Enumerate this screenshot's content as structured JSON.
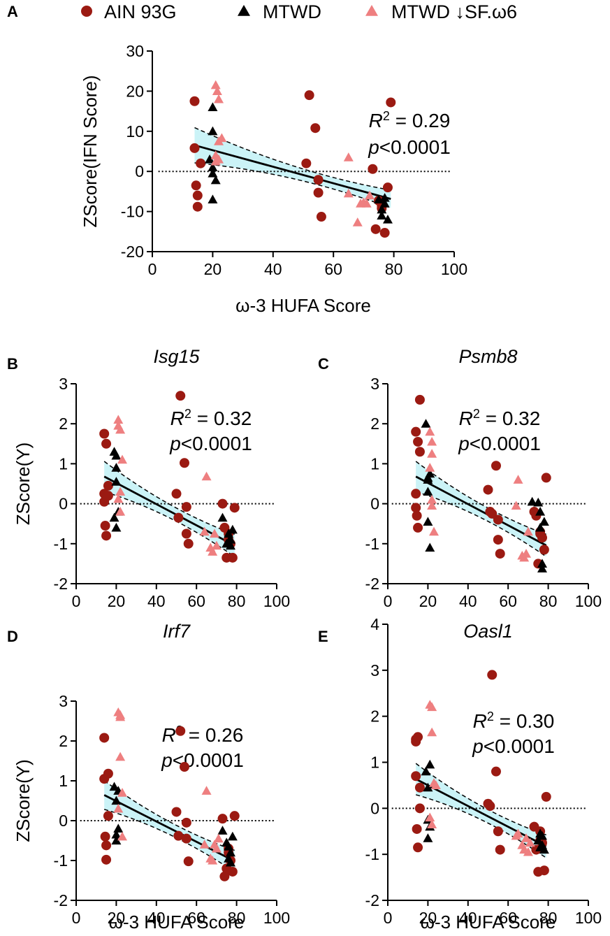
{
  "colors": {
    "ain": "#9b1a12",
    "mtwd": "#000000",
    "mtwd_low": "#ee7f80",
    "band": "#cbf3f7",
    "line": "#000000"
  },
  "legend": [
    {
      "key": "ain",
      "shape": "circle",
      "label": "AIN 93G"
    },
    {
      "key": "mtwd",
      "shape": "triangle",
      "label": "MTWD"
    },
    {
      "key": "mtwd_low",
      "shape": "triangle",
      "label": "MTWD ↓SF.ω6"
    }
  ],
  "chart_data": [
    {
      "id": "A",
      "letter": "A",
      "type": "scatter",
      "title": "",
      "xlabel": "ω-3 HUFA Score",
      "ylabel": "ZScore(IFN Score)",
      "xlim": [
        0,
        100
      ],
      "ylim": [
        -20,
        30
      ],
      "xticks": [
        "0",
        "20",
        "40",
        "60",
        "80",
        "100"
      ],
      "yticks": [
        "-20",
        "-10",
        "0",
        "10",
        "20",
        "30"
      ],
      "stat": {
        "r2_label": "R",
        "r2_sup": "2",
        "r2_value": " = 0.29",
        "p_label": "p",
        "p_value": "<0.0001"
      },
      "fit": {
        "slope": -0.206,
        "intercept": 9.4,
        "band_at_min": 4.4,
        "band_at_mid": 1.6,
        "band_at_max": 2.2,
        "x_from": 14,
        "x_to": 79
      },
      "zero_line": {
        "x_from": 2,
        "x_to": 99
      },
      "series": [
        {
          "key": "ain",
          "name": "AIN 93G",
          "x": [
            14,
            14,
            14.5,
            15,
            15,
            16,
            51,
            52,
            54,
            55,
            55,
            56,
            73,
            74,
            75,
            76,
            76,
            77,
            78,
            79
          ],
          "y": [
            17.5,
            5.8,
            -3.5,
            -6,
            -8.8,
            2,
            2,
            19,
            10.8,
            -2.1,
            -5.3,
            -11.3,
            0.6,
            -14.4,
            -7.3,
            -9.2,
            -8.5,
            -15.3,
            -4,
            17.2
          ]
        },
        {
          "key": "mtwd",
          "name": "MTWD",
          "x": [
            19,
            20,
            20,
            20,
            20,
            20,
            21,
            75,
            76,
            76,
            77,
            77,
            78
          ],
          "y": [
            3,
            16,
            10,
            1,
            -0.5,
            -7,
            -2.2,
            -7,
            -9.5,
            -11,
            -8,
            -6.6,
            -12
          ]
        },
        {
          "key": "mtwd_low",
          "name": "MTWD ↓SF.ω6",
          "x": [
            21,
            21.5,
            22,
            22,
            21,
            22,
            21,
            23,
            65,
            65,
            68,
            69,
            70,
            71,
            72
          ],
          "y": [
            21.5,
            20,
            18,
            7.5,
            4,
            3,
            2.5,
            8.3,
            3.5,
            -5.5,
            -12.7,
            -8,
            -7.7,
            -8,
            -6
          ]
        }
      ]
    },
    {
      "id": "B",
      "letter": "B",
      "type": "scatter",
      "title": "Isg15",
      "xlabel": "",
      "ylabel": "ZScore(Y)",
      "xlim": [
        0,
        100
      ],
      "ylim": [
        -2,
        3
      ],
      "xticks": [
        "0",
        "20",
        "40",
        "60",
        "80",
        "100"
      ],
      "yticks": [
        "-2",
        "-1",
        "0",
        "1",
        "2",
        "3"
      ],
      "stat": {
        "r2_label": "R",
        "r2_sup": "2",
        "r2_value": " = 0.32",
        "p_label": "p",
        "p_value": "<0.0001"
      },
      "fit": {
        "slope": -0.0265,
        "intercept": 1.05,
        "band_at_min": 0.38,
        "band_at_mid": 0.17,
        "band_at_max": 0.28,
        "x_from": 14,
        "x_to": 79
      },
      "zero_line": {
        "x_from": 2,
        "x_to": 99
      },
      "series": [
        {
          "key": "ain",
          "name": "AIN 93G",
          "x": [
            14,
            14,
            14,
            14.5,
            15,
            15,
            16,
            16,
            50,
            51,
            52,
            54,
            55,
            55,
            56,
            73,
            74,
            75,
            76,
            76,
            77,
            78,
            79
          ],
          "y": [
            1.75,
            0.25,
            0.05,
            -0.55,
            -0.8,
            1.5,
            0.45,
            0.2,
            0.25,
            -0.35,
            2.7,
            1.02,
            -0.08,
            -0.75,
            -1,
            0,
            -0.6,
            -1.35,
            -0.9,
            -0.75,
            -1,
            -1.35,
            -0.1
          ]
        },
        {
          "key": "mtwd",
          "name": "MTWD",
          "x": [
            19,
            19,
            20,
            20,
            20,
            20,
            21,
            73,
            75,
            76,
            76,
            77,
            77,
            78
          ],
          "y": [
            1.3,
            -0.35,
            1.2,
            0.9,
            0.55,
            -0.6,
            -0.2,
            -0.35,
            -1,
            -0.95,
            -0.75,
            -0.9,
            -1.05,
            -0.65
          ]
        },
        {
          "key": "mtwd_low",
          "name": "MTWD ↓SF.ω6",
          "x": [
            21,
            21,
            22,
            22,
            21,
            22,
            23,
            64,
            65,
            67,
            68,
            69,
            70
          ],
          "y": [
            2.1,
            1.95,
            1.85,
            0.3,
            0.12,
            -0.2,
            1.1,
            -0.7,
            0.68,
            -1.1,
            -1.2,
            -0.75,
            -1.05
          ]
        }
      ]
    },
    {
      "id": "C",
      "letter": "C",
      "type": "scatter",
      "title": "Psmb8",
      "xlabel": "",
      "ylabel": "",
      "xlim": [
        0,
        100
      ],
      "ylim": [
        -2,
        3
      ],
      "xticks": [
        "0",
        "20",
        "40",
        "60",
        "80",
        "100"
      ],
      "yticks": [
        "-2",
        "-1",
        "0",
        "1",
        "2",
        "3"
      ],
      "stat": {
        "r2_label": "R",
        "r2_sup": "2",
        "r2_value": " = 0.32",
        "p_label": "p",
        "p_value": "<0.0001"
      },
      "fit": {
        "slope": -0.0265,
        "intercept": 1.05,
        "band_at_min": 0.38,
        "band_at_mid": 0.17,
        "band_at_max": 0.28,
        "x_from": 14,
        "x_to": 79
      },
      "zero_line": {
        "x_from": 2,
        "x_to": 99
      },
      "series": [
        {
          "key": "ain",
          "name": "AIN 93G",
          "x": [
            14,
            14,
            14,
            14.5,
            15,
            15,
            16,
            16,
            50,
            51,
            52,
            54,
            55,
            55,
            56,
            73,
            74,
            75,
            76,
            76,
            77,
            78,
            79
          ],
          "y": [
            1.8,
            0.25,
            -0.1,
            -0.3,
            -0.6,
            1.55,
            2.6,
            1.3,
            0.35,
            -0.2,
            -0.25,
            0.95,
            -0.4,
            -0.9,
            -1.25,
            -0.2,
            -0.3,
            -1.5,
            -0.75,
            -0.7,
            -0.85,
            -1.15,
            0.65
          ]
        },
        {
          "key": "mtwd",
          "name": "MTWD",
          "x": [
            19,
            20,
            20,
            20,
            20,
            21,
            21,
            72,
            75,
            76,
            76,
            77,
            77,
            78
          ],
          "y": [
            2,
            0.6,
            0.65,
            0.3,
            -0.45,
            -1.1,
            0.75,
            0.05,
            0.03,
            -0.2,
            -0.6,
            -1.5,
            -1.62,
            -0.45
          ]
        },
        {
          "key": "mtwd_low",
          "name": "MTWD ↓SF.ω6",
          "x": [
            21,
            22,
            22,
            21,
            22,
            23,
            22,
            64,
            65,
            67,
            68,
            69,
            70
          ],
          "y": [
            1.8,
            1.55,
            1.25,
            0.9,
            0.1,
            -0.7,
            -0.05,
            -0.05,
            0.6,
            -1.3,
            -1.35,
            -1.25,
            -0.7
          ]
        }
      ]
    },
    {
      "id": "D",
      "letter": "D",
      "type": "scatter",
      "title": "Irf7",
      "xlabel": "ω-3 HUFA Score",
      "ylabel": "ZScore(Y)",
      "xlim": [
        0,
        100
      ],
      "ylim": [
        -2,
        3
      ],
      "xticks": [
        "0",
        "20",
        "40",
        "60",
        "80",
        "100"
      ],
      "yticks": [
        "-2",
        "-1",
        "0",
        "1",
        "2",
        "3"
      ],
      "stat": {
        "r2_label": "R",
        "r2_sup": "2",
        "r2_value": " = 0.26",
        "p_label": "p",
        "p_value": "<0.0001"
      },
      "fit": {
        "slope": -0.0255,
        "intercept": 1.0,
        "band_at_min": 0.36,
        "band_at_mid": 0.16,
        "band_at_max": 0.27,
        "x_from": 14,
        "x_to": 79
      },
      "zero_line": {
        "x_from": 2,
        "x_to": 99
      },
      "series": [
        {
          "key": "ain",
          "name": "AIN 93G",
          "x": [
            14,
            14,
            14.5,
            15,
            15,
            16,
            16,
            50,
            51,
            52,
            54,
            55,
            55,
            56,
            73,
            74,
            75,
            76,
            76,
            77,
            78,
            79
          ],
          "y": [
            2.08,
            1.05,
            -0.4,
            -0.62,
            -0.98,
            0.12,
            1.18,
            0.22,
            -0.38,
            2.25,
            1.35,
            -0.05,
            -0.45,
            -1.02,
            0.05,
            -1.4,
            -1.2,
            -0.8,
            -0.7,
            -1,
            -1.28,
            0.12
          ]
        },
        {
          "key": "mtwd",
          "name": "MTWD",
          "x": [
            19,
            20,
            20,
            20,
            21,
            21,
            73,
            75,
            76,
            76,
            77,
            77,
            78
          ],
          "y": [
            0.85,
            0.5,
            -0.35,
            -0.5,
            -0.2,
            0.75,
            -0.25,
            -0.55,
            -0.65,
            -0.95,
            -1.05,
            -0.8,
            -0.4
          ]
        },
        {
          "key": "mtwd_low",
          "name": "MTWD ↓SF.ω6",
          "x": [
            21,
            22,
            22,
            22,
            21,
            23,
            23,
            64,
            65,
            67,
            68,
            69,
            70,
            71
          ],
          "y": [
            2.72,
            2.65,
            2.6,
            1.6,
            0.3,
            -0.4,
            0.7,
            -0.6,
            0.75,
            -0.95,
            -1,
            -0.6,
            -0.7,
            -0.45
          ]
        }
      ]
    },
    {
      "id": "E",
      "letter": "E",
      "type": "scatter",
      "title": "Oasl1",
      "xlabel": "ω-3 HUFA Score",
      "ylabel": "",
      "xlim": [
        0,
        100
      ],
      "ylim": [
        -2,
        4
      ],
      "xticks": [
        "0",
        "20",
        "40",
        "60",
        "80",
        "100"
      ],
      "yticks": [
        "-2",
        "-1",
        "0",
        "1",
        "2",
        "3",
        "4"
      ],
      "stat": {
        "r2_label": "R",
        "r2_sup": "2",
        "r2_value": " = 0.30",
        "p_label": "p",
        "p_value": "<0.0001"
      },
      "fit": {
        "slope": -0.0225,
        "intercept": 0.95,
        "band_at_min": 0.34,
        "band_at_mid": 0.15,
        "band_at_max": 0.25,
        "x_from": 14,
        "x_to": 79
      },
      "zero_line": {
        "x_from": 2,
        "x_to": 99
      },
      "series": [
        {
          "key": "ain",
          "name": "AIN 93G",
          "x": [
            14,
            14,
            14,
            14.5,
            15,
            15,
            16,
            16,
            50,
            51,
            52,
            54,
            55,
            56,
            73,
            74,
            75,
            76,
            76,
            77,
            78,
            79
          ],
          "y": [
            1.5,
            1.45,
            0.7,
            -0.45,
            -0.85,
            1.55,
            0.45,
            0,
            0.1,
            0.05,
            2.9,
            0.8,
            -0.5,
            -0.9,
            -0.4,
            -0.9,
            -1.38,
            -0.7,
            -0.5,
            -0.75,
            -1.35,
            0.25
          ]
        },
        {
          "key": "mtwd",
          "name": "MTWD",
          "x": [
            19,
            20,
            20,
            20,
            21,
            21,
            75,
            76,
            76,
            77,
            77,
            78
          ],
          "y": [
            0.8,
            0.45,
            -0.25,
            -0.65,
            -0.4,
            0.95,
            -0.7,
            -0.85,
            -0.55,
            -0.8,
            -0.6,
            -0.9
          ]
        },
        {
          "key": "mtwd_low",
          "name": "MTWD ↓SF.ω6",
          "x": [
            21,
            22,
            22,
            23,
            21,
            22,
            24,
            64,
            65,
            67,
            68,
            69,
            70,
            71
          ],
          "y": [
            2.25,
            2.2,
            1.65,
            0.55,
            -0.2,
            -0.35,
            0.5,
            -0.6,
            -0.55,
            -0.8,
            -0.9,
            -0.65,
            -0.95,
            -0.75
          ]
        }
      ]
    }
  ]
}
